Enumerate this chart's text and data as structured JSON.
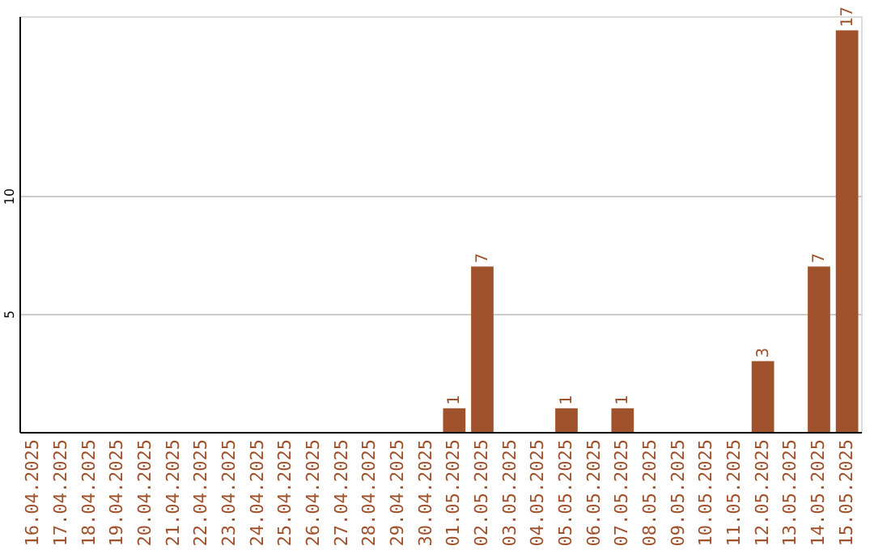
{
  "chart_data": {
    "type": "bar",
    "categories": [
      "16.04.2025",
      "17.04.2025",
      "18.04.2025",
      "19.04.2025",
      "20.04.2025",
      "21.04.2025",
      "22.04.2025",
      "23.04.2025",
      "24.04.2025",
      "25.04.2025",
      "26.04.2025",
      "27.04.2025",
      "28.04.2025",
      "29.04.2025",
      "30.04.2025",
      "01.05.2025",
      "02.05.2025",
      "03.05.2025",
      "04.05.2025",
      "05.05.2025",
      "06.05.2025",
      "07.05.2025",
      "08.05.2025",
      "09.05.2025",
      "10.05.2025",
      "11.05.2025",
      "12.05.2025",
      "13.05.2025",
      "14.05.2025",
      "15.05.2025"
    ],
    "values": [
      0,
      0,
      0,
      0,
      0,
      0,
      0,
      0,
      0,
      0,
      0,
      0,
      0,
      0,
      0,
      1,
      7,
      0,
      0,
      1,
      0,
      1,
      0,
      0,
      0,
      0,
      3,
      0,
      7,
      17
    ],
    "value_labels": [
      null,
      null,
      null,
      null,
      null,
      null,
      null,
      null,
      null,
      null,
      null,
      null,
      null,
      null,
      null,
      "1",
      "7",
      null,
      null,
      "1",
      null,
      "1",
      null,
      null,
      null,
      null,
      "3",
      null,
      "7",
      "17"
    ],
    "color": "#a0522d",
    "ylim": [
      0,
      17.6
    ],
    "yticks": [
      5,
      10
    ],
    "grid": "y"
  }
}
